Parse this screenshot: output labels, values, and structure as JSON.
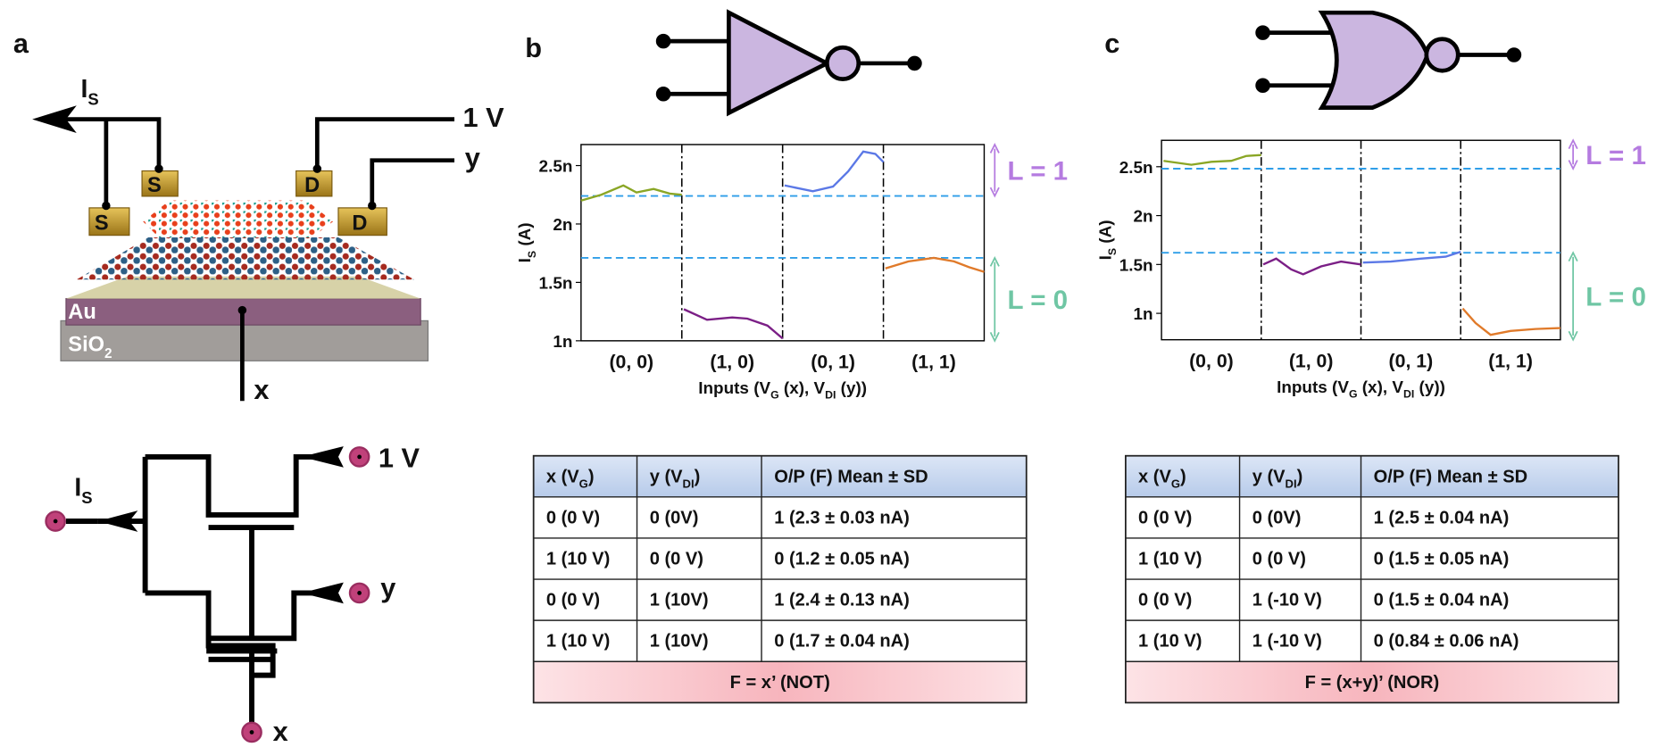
{
  "panel_labels": [
    "a",
    "b",
    "c"
  ],
  "device": {
    "current": [
      "I",
      "S"
    ],
    "drain_voltage": "1 V",
    "y_input": "y",
    "x_input": "x",
    "source_pads": [
      "S",
      "S"
    ],
    "drain_pads": [
      "D",
      "D"
    ],
    "metal": "Au",
    "substrate": [
      "SiO",
      "2"
    ]
  },
  "circuit": {
    "current": [
      "I",
      "S"
    ],
    "voltage": "1 V",
    "y_input": "y",
    "x_input": "x"
  },
  "chart_data": [
    {
      "type": "line",
      "xlabel": [
        "Inputs (V",
        "G",
        " (x), V",
        "DI",
        " (y))"
      ],
      "ylabel": [
        "I",
        "S",
        " (A)"
      ],
      "categories": [
        "(0, 0)",
        "(1, 0)",
        "(0, 1)",
        "(1, 1)"
      ],
      "xlim": [
        0,
        4
      ],
      "ylim": [
        1,
        2.68
      ],
      "yticks": [
        {
          "value": 1,
          "label": "1n"
        },
        {
          "value": 1.5,
          "label": "1.5n"
        },
        {
          "value": 2,
          "label": "2n"
        },
        {
          "value": 2.5,
          "label": "2.5n"
        }
      ],
      "reference_lines": [
        2.24,
        1.71
      ],
      "reference_color": "#2f9ee8",
      "level_labels": [
        "L = 1",
        "L = 0"
      ],
      "level_colors": [
        "#b57be0",
        "#6fc6a4"
      ],
      "series": [
        {
          "color": "#8aa625",
          "x": [
            0.0,
            0.2,
            0.42,
            0.55,
            0.72,
            0.88,
            1.0
          ],
          "values": [
            2.2,
            2.25,
            2.33,
            2.27,
            2.3,
            2.26,
            2.25
          ]
        },
        {
          "color": "#7b1f86",
          "x": [
            1.02,
            1.25,
            1.5,
            1.65,
            1.85,
            2.0
          ],
          "values": [
            1.27,
            1.18,
            1.2,
            1.19,
            1.13,
            1.02
          ]
        },
        {
          "color": "#5b78e6",
          "x": [
            2.02,
            2.3,
            2.5,
            2.65,
            2.8,
            2.92,
            3.0
          ],
          "values": [
            2.33,
            2.28,
            2.32,
            2.45,
            2.62,
            2.6,
            2.53
          ]
        },
        {
          "color": "#e07a2a",
          "x": [
            3.02,
            3.25,
            3.5,
            3.7,
            3.85,
            4.0
          ],
          "values": [
            1.62,
            1.68,
            1.71,
            1.68,
            1.63,
            1.59
          ]
        }
      ]
    },
    {
      "type": "line",
      "xlabel": [
        "Inputs (V",
        "G",
        " (x), V",
        "DI",
        " (y))"
      ],
      "ylabel": [
        "I",
        "S",
        " (A)"
      ],
      "categories": [
        "(0, 0)",
        "(1, 0)",
        "(0, 1)",
        "(1, 1)"
      ],
      "xlim": [
        0,
        4
      ],
      "ylim": [
        0.73,
        2.77
      ],
      "yticks": [
        {
          "value": 1,
          "label": "1n"
        },
        {
          "value": 1.5,
          "label": "1.5n"
        },
        {
          "value": 2,
          "label": "2n"
        },
        {
          "value": 2.5,
          "label": "2.5n"
        }
      ],
      "reference_lines": [
        2.48,
        1.62
      ],
      "reference_color": "#2f9ee8",
      "level_labels": [
        "L = 1",
        "L = 0"
      ],
      "level_colors": [
        "#b57be0",
        "#6fc6a4"
      ],
      "series": [
        {
          "color": "#8aa625",
          "x": [
            0.02,
            0.3,
            0.5,
            0.7,
            0.85,
            1.0
          ],
          "values": [
            2.56,
            2.52,
            2.55,
            2.56,
            2.61,
            2.62
          ]
        },
        {
          "color": "#7b1f86",
          "x": [
            1.02,
            1.15,
            1.3,
            1.42,
            1.6,
            1.8,
            2.0
          ],
          "values": [
            1.5,
            1.56,
            1.45,
            1.4,
            1.48,
            1.53,
            1.5
          ]
        },
        {
          "color": "#5b78e6",
          "x": [
            2.02,
            2.3,
            2.6,
            2.85,
            3.0
          ],
          "values": [
            1.52,
            1.53,
            1.56,
            1.58,
            1.63
          ]
        },
        {
          "color": "#e07a2a",
          "x": [
            3.02,
            3.15,
            3.3,
            3.5,
            3.75,
            4.0
          ],
          "values": [
            1.05,
            0.9,
            0.78,
            0.82,
            0.84,
            0.85
          ]
        }
      ]
    }
  ],
  "tables": [
    {
      "header": [
        [
          "x (V",
          "G",
          ")"
        ],
        [
          "y (V",
          "DI",
          ")"
        ],
        "O/P (F) Mean ± SD"
      ],
      "rows": [
        [
          "0 (0 V)",
          "0 (0V)",
          "1 (2.3 ± 0.03 nA)"
        ],
        [
          "1 (10 V)",
          "0 (0 V)",
          "0 (1.2 ± 0.05 nA)"
        ],
        [
          "0 (0 V)",
          "1 (10V)",
          "1 (2.4 ± 0.13 nA)"
        ],
        [
          "1 (10 V)",
          "1 (10V)",
          "0 (1.7 ± 0.04 nA)"
        ]
      ],
      "footer": "F = x’ (NOT)"
    },
    {
      "header": [
        [
          "x (V",
          "G",
          ")"
        ],
        [
          "y (V",
          "DI",
          ")"
        ],
        "O/P (F) Mean ± SD"
      ],
      "rows": [
        [
          "0 (0 V)",
          "0 (0V)",
          "1 (2.5 ± 0.04 nA)"
        ],
        [
          "1 (10 V)",
          "0 (0 V)",
          "0 (1.5 ± 0.05 nA)"
        ],
        [
          "0 (0 V)",
          "1 (-10 V)",
          "0 (1.5 ± 0.04 nA)"
        ],
        [
          "1 (10 V)",
          "1 (-10 V)",
          "0 (0.84 ± 0.06 nA)"
        ]
      ],
      "footer": "F = (x+y)’ (NOR)"
    }
  ]
}
